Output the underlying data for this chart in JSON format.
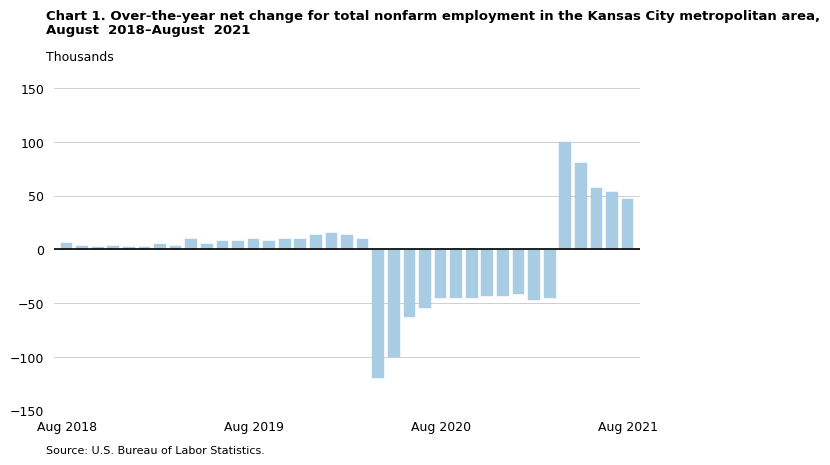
{
  "title_line1": "Chart 1. Over-the-year net change for total nonfarm employment in the Kansas City metropolitan area,",
  "title_line2": "August  2018–August  2021",
  "ylabel": "Thousands",
  "source": "Source: U.S. Bureau of Labor Statistics.",
  "bar_color": "#a8cce4",
  "ylim": [
    -150,
    150
  ],
  "yticks": [
    -150,
    -100,
    -50,
    0,
    50,
    100,
    150
  ],
  "background_color": "#ffffff",
  "zero_line_color": "#000000",
  "grid_color": "#c8c8c8",
  "values": [
    6,
    3,
    2,
    3,
    2,
    2,
    5,
    3,
    10,
    5,
    8,
    8,
    10,
    8,
    10,
    10,
    13,
    15,
    13,
    10,
    -120,
    -100,
    -63,
    -55,
    -45,
    -45,
    -45,
    -43,
    -43,
    -42,
    -47,
    -45,
    100,
    80,
    57,
    53,
    47
  ],
  "xtick_labels": [
    "Aug 2018",
    "Aug 2019",
    "Aug 2020",
    "Aug 2021"
  ],
  "xtick_positions": [
    0,
    12,
    24,
    36
  ],
  "title_fontsize": 9.5,
  "axis_fontsize": 9,
  "source_fontsize": 8
}
